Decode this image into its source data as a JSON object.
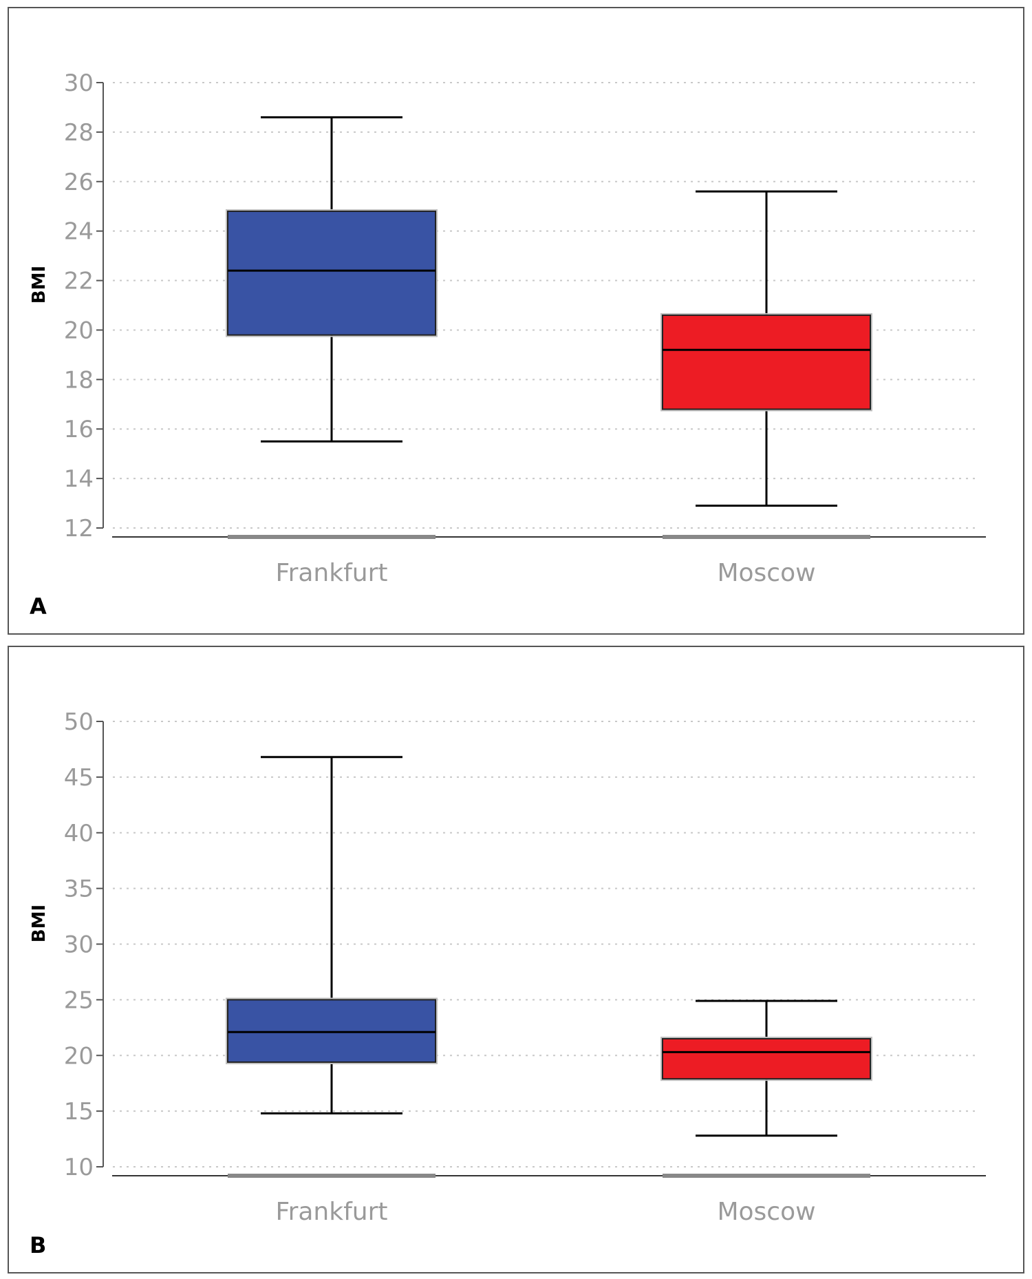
{
  "chart_data": [
    {
      "panel_label": "A",
      "type": "box",
      "ylabel": "BMI",
      "xlabel": "",
      "ylim": [
        12,
        30
      ],
      "yticks": [
        12,
        14,
        16,
        18,
        20,
        22,
        24,
        26,
        28,
        30
      ],
      "grid": true,
      "categories": [
        "Frankfurt",
        "Moscow"
      ],
      "boxes": [
        {
          "category": "Frankfurt",
          "whisker_low": 15.5,
          "q1": 19.8,
          "median": 22.4,
          "q3": 24.8,
          "whisker_high": 28.6,
          "color": "#3953a4"
        },
        {
          "category": "Moscow",
          "whisker_low": 12.9,
          "q1": 16.8,
          "median": 19.2,
          "q3": 20.6,
          "whisker_high": 25.6,
          "color": "#ed1c24"
        }
      ]
    },
    {
      "panel_label": "B",
      "type": "box",
      "ylabel": "BMI",
      "xlabel": "",
      "ylim": [
        10,
        50
      ],
      "yticks": [
        10,
        15,
        20,
        25,
        30,
        35,
        40,
        45,
        50
      ],
      "grid": true,
      "categories": [
        "Frankfurt",
        "Moscow"
      ],
      "boxes": [
        {
          "category": "Frankfurt",
          "whisker_low": 14.8,
          "q1": 19.4,
          "median": 22.1,
          "q3": 25.0,
          "whisker_high": 46.8,
          "color": "#3953a4"
        },
        {
          "category": "Moscow",
          "whisker_low": 12.8,
          "q1": 17.9,
          "median": 20.3,
          "q3": 21.5,
          "whisker_high": 24.9,
          "color": "#ed1c24"
        }
      ]
    }
  ]
}
